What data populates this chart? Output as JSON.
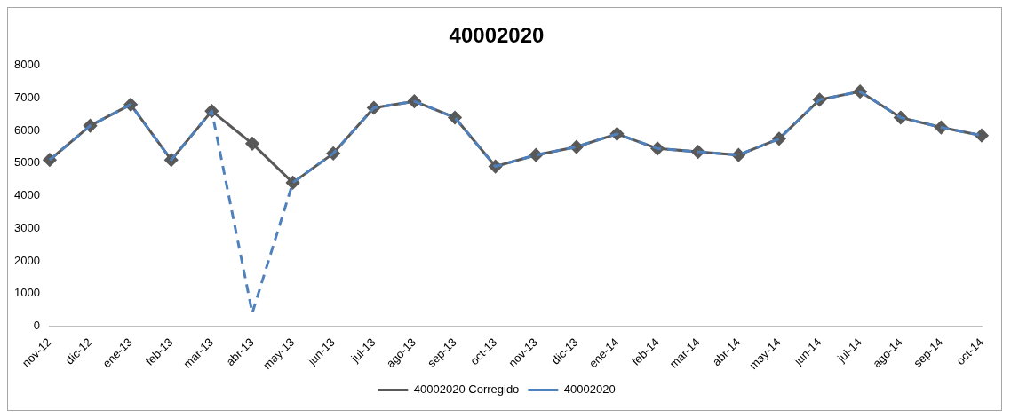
{
  "chart_data": {
    "type": "line",
    "title": "40002020",
    "categories": [
      "nov-12",
      "dic-12",
      "ene-13",
      "feb-13",
      "mar-13",
      "abr-13",
      "may-13",
      "jun-13",
      "jul-13",
      "ago-13",
      "sep-13",
      "oct-13",
      "nov-13",
      "dic-13",
      "ene-14",
      "feb-14",
      "mar-14",
      "abr-14",
      "may-14",
      "jun-14",
      "jul-14",
      "ago-14",
      "sep-14",
      "oct-14"
    ],
    "series": [
      {
        "name": "40002020 Corregido",
        "color": "#595959",
        "marker": "diamond",
        "line_style": "solid",
        "values": [
          5100,
          6150,
          6800,
          5100,
          6600,
          5600,
          4400,
          5300,
          6700,
          6900,
          6400,
          4900,
          5250,
          5500,
          5900,
          5450,
          5350,
          5250,
          5750,
          6950,
          7200,
          6400,
          6100,
          5850
        ]
      },
      {
        "name": "40002020",
        "color": "#4f81bd",
        "marker": "none",
        "line_style": "dashed",
        "values": [
          5100,
          6150,
          6800,
          5100,
          6600,
          400,
          4400,
          5300,
          6700,
          6900,
          6400,
          4900,
          5250,
          5500,
          5900,
          5450,
          5350,
          5250,
          5750,
          6950,
          7200,
          6400,
          6100,
          5850
        ]
      }
    ],
    "ylim": [
      0,
      8000
    ],
    "yticks": [
      0,
      1000,
      2000,
      3000,
      4000,
      5000,
      6000,
      7000,
      8000
    ],
    "grid": false,
    "legend": "bottom"
  }
}
